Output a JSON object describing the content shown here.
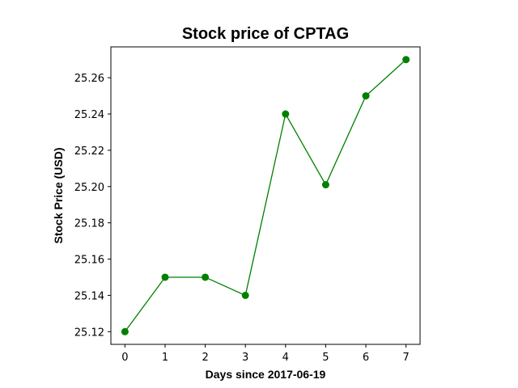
{
  "chart_data": {
    "type": "line",
    "title": "Stock price of CPTAG",
    "xlabel": "Days since 2017-06-19",
    "ylabel": "Stock Price (USD)",
    "x": [
      0,
      1,
      2,
      3,
      4,
      5,
      6,
      7
    ],
    "series": [
      {
        "values": [
          25.12,
          25.15,
          25.15,
          25.14,
          25.24,
          25.201,
          25.25,
          25.27
        ],
        "color": "#008000",
        "marker": "circle"
      }
    ],
    "xlim": [
      -0.35,
      7.35
    ],
    "ylim": [
      25.113,
      25.277
    ],
    "xticks": [
      0,
      1,
      2,
      3,
      4,
      5,
      6,
      7
    ],
    "yticks": [
      25.12,
      25.14,
      25.16,
      25.18,
      25.2,
      25.22,
      25.24,
      25.26
    ],
    "ytick_labels": [
      "25.12",
      "25.14",
      "25.16",
      "25.18",
      "25.20",
      "25.22",
      "25.24",
      "25.26"
    ],
    "grid": false,
    "legend": "none"
  }
}
